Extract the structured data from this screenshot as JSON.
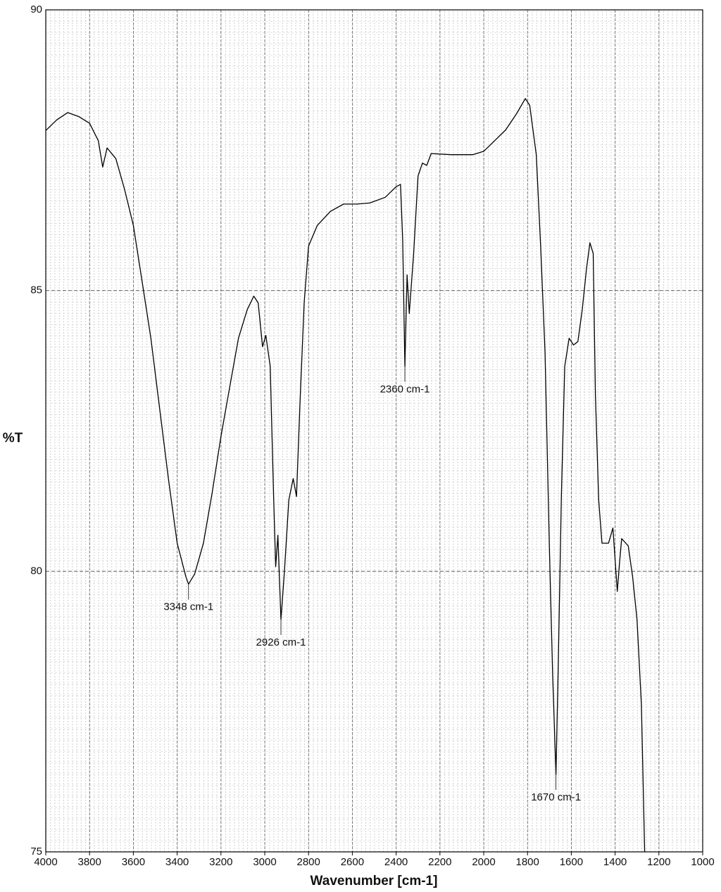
{
  "chart_data": {
    "type": "line",
    "xlabel": "Wavenumber [cm-1]",
    "ylabel": "%T",
    "xlim": [
      4000,
      1000
    ],
    "ylim": [
      75,
      90
    ],
    "xticks": [
      4000,
      3800,
      3600,
      3400,
      3200,
      3000,
      2800,
      2600,
      2400,
      2200,
      2000,
      1800,
      1600,
      1400,
      1200,
      1000
    ],
    "yticks": [
      75,
      80,
      85,
      90
    ],
    "grid": true,
    "color": "#000000",
    "x": [
      4000,
      3950,
      3900,
      3850,
      3800,
      3760,
      3740,
      3720,
      3680,
      3640,
      3600,
      3560,
      3520,
      3480,
      3440,
      3400,
      3360,
      3348,
      3320,
      3280,
      3240,
      3200,
      3160,
      3120,
      3080,
      3050,
      3030,
      3010,
      2995,
      2975,
      2960,
      2950,
      2940,
      2926,
      2910,
      2890,
      2870,
      2855,
      2840,
      2820,
      2800,
      2760,
      2700,
      2640,
      2580,
      2520,
      2450,
      2400,
      2380,
      2370,
      2360,
      2350,
      2340,
      2320,
      2300,
      2280,
      2260,
      2240,
      2150,
      2050,
      2000,
      1950,
      1900,
      1850,
      1810,
      1790,
      1760,
      1740,
      1720,
      1700,
      1685,
      1670,
      1660,
      1645,
      1630,
      1610,
      1590,
      1570,
      1550,
      1530,
      1515,
      1500,
      1490,
      1475,
      1460,
      1430,
      1410,
      1390,
      1380,
      1370,
      1340,
      1320,
      1300,
      1280,
      1265
    ],
    "values": [
      87.85,
      88.04,
      88.17,
      88.1,
      87.98,
      87.67,
      87.2,
      87.54,
      87.35,
      86.8,
      86.16,
      85.16,
      84.15,
      82.9,
      81.65,
      80.5,
      79.9,
      79.77,
      79.95,
      80.5,
      81.4,
      82.4,
      83.28,
      84.15,
      84.66,
      84.9,
      84.78,
      84.0,
      84.2,
      83.65,
      81.4,
      80.08,
      80.64,
      79.14,
      80.0,
      81.27,
      81.65,
      81.33,
      82.9,
      84.78,
      85.79,
      86.16,
      86.41,
      86.54,
      86.54,
      86.56,
      86.66,
      86.85,
      86.89,
      85.9,
      83.65,
      85.28,
      84.59,
      85.66,
      87.04,
      87.27,
      87.23,
      87.44,
      87.42,
      87.42,
      87.48,
      87.67,
      87.86,
      88.15,
      88.42,
      88.3,
      87.42,
      85.79,
      83.9,
      80.4,
      78.13,
      76.38,
      78.26,
      81.4,
      83.65,
      84.15,
      84.03,
      84.09,
      84.66,
      85.41,
      85.85,
      85.66,
      83.15,
      81.27,
      80.5,
      80.5,
      80.77,
      79.64,
      80.14,
      80.58,
      80.45,
      79.9,
      79.14,
      77.63,
      75.0
    ],
    "annotations": [
      {
        "label": "3348 cm-1",
        "x": 3348,
        "y": 79.77
      },
      {
        "label": "2926 cm-1",
        "x": 2926,
        "y": 79.14
      },
      {
        "label": "2360 cm-1",
        "x": 2360,
        "y": 83.65
      },
      {
        "label": "1670 cm-1",
        "x": 1670,
        "y": 76.38
      }
    ]
  }
}
